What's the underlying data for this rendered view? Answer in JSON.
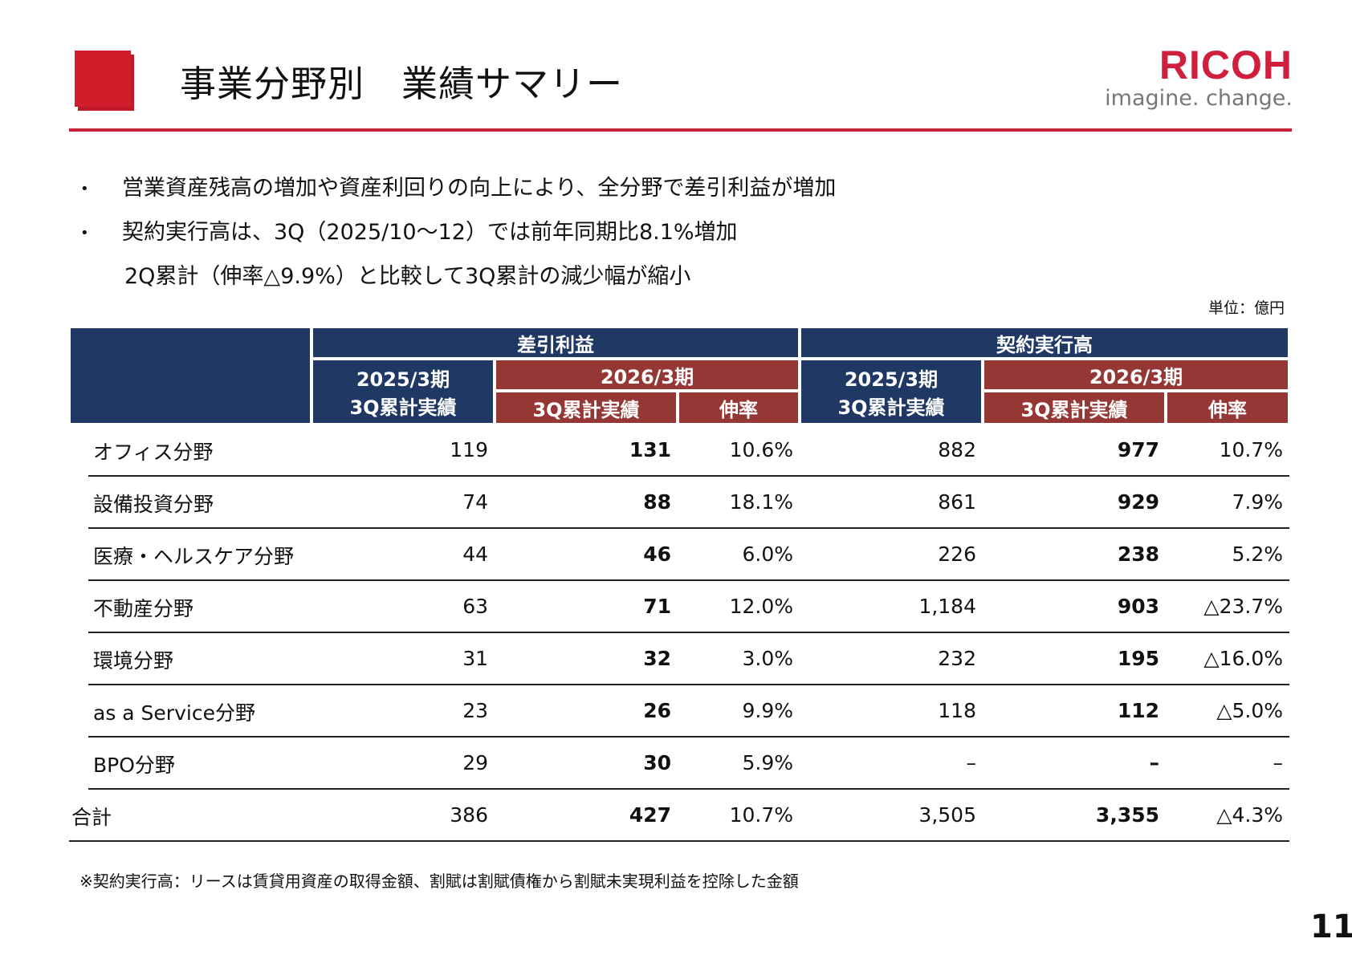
{
  "header": {
    "title": "事業分野別　業績サマリー",
    "logo_brand": "RICOH",
    "logo_tagline": "imagine. change.",
    "brand_color": "#cf1f3d"
  },
  "bullets": [
    "営業資産残高の増加や資産利回りの向上により、全分野で差引利益が増加",
    "契約実行高は、3Q（2025/10～12）では前年同期比8.1%増加",
    "2Q累計（伸率△9.9%）と比較して3Q累計の減少幅が縮小"
  ],
  "unit": "単位：億円",
  "table": {
    "groups": [
      "差引利益",
      "契約実行高"
    ],
    "periods": {
      "prev": "2025/3期",
      "curr": "2026/3期"
    },
    "sub": {
      "actual": "3Q累計実績",
      "growth": "伸率"
    },
    "rows": [
      {
        "label": "オフィス分野",
        "a": [
          "119",
          "131",
          "10.6%"
        ],
        "b": [
          "882",
          "977",
          "10.7%"
        ]
      },
      {
        "label": "設備投資分野",
        "a": [
          "74",
          "88",
          "18.1%"
        ],
        "b": [
          "861",
          "929",
          "7.9%"
        ]
      },
      {
        "label": "医療・ヘルスケア分野",
        "a": [
          "44",
          "46",
          "6.0%"
        ],
        "b": [
          "226",
          "238",
          "5.2%"
        ]
      },
      {
        "label": "不動産分野",
        "a": [
          "63",
          "71",
          "12.0%"
        ],
        "b": [
          "1,184",
          "903",
          "△23.7%"
        ]
      },
      {
        "label": "環境分野",
        "a": [
          "31",
          "32",
          "3.0%"
        ],
        "b": [
          "232",
          "195",
          "△16.0%"
        ]
      },
      {
        "label": "as a Service分野",
        "a": [
          "23",
          "26",
          "9.9%"
        ],
        "b": [
          "118",
          "112",
          "△5.0%"
        ]
      },
      {
        "label": "BPO分野",
        "a": [
          "29",
          "30",
          "5.9%"
        ],
        "b": [
          "–",
          "–",
          "–"
        ]
      },
      {
        "label": "合計",
        "a": [
          "386",
          "427",
          "10.7%"
        ],
        "b": [
          "3,505",
          "3,355",
          "△4.3%"
        ]
      }
    ],
    "colors": {
      "navy": "#203864",
      "red": "#953735"
    }
  },
  "footnote": "※契約実行高：リースは賃貸用資産の取得金額、割賦は割賦債権から割賦未実現利益を控除した金額",
  "page_number": "11"
}
